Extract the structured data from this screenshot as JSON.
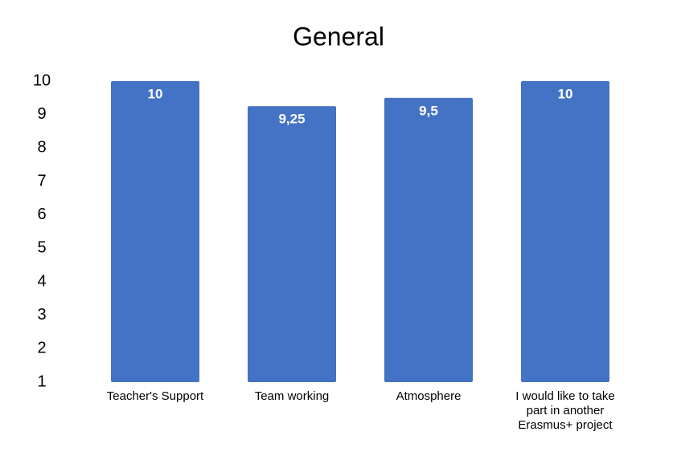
{
  "chart_data": {
    "type": "bar",
    "title": "General",
    "categories": [
      "Teacher's Support",
      "Team working",
      "Atmosphere",
      "I would like to take part in another Erasmus+ project"
    ],
    "values": [
      10,
      9.25,
      9.5,
      10
    ],
    "value_labels": [
      "10",
      "9,25",
      "9,5",
      "10"
    ],
    "color": "#4472c4",
    "ylim": [
      1,
      10
    ],
    "yticks": [
      1,
      2,
      3,
      4,
      5,
      6,
      7,
      8,
      9,
      10
    ],
    "grid": false
  }
}
